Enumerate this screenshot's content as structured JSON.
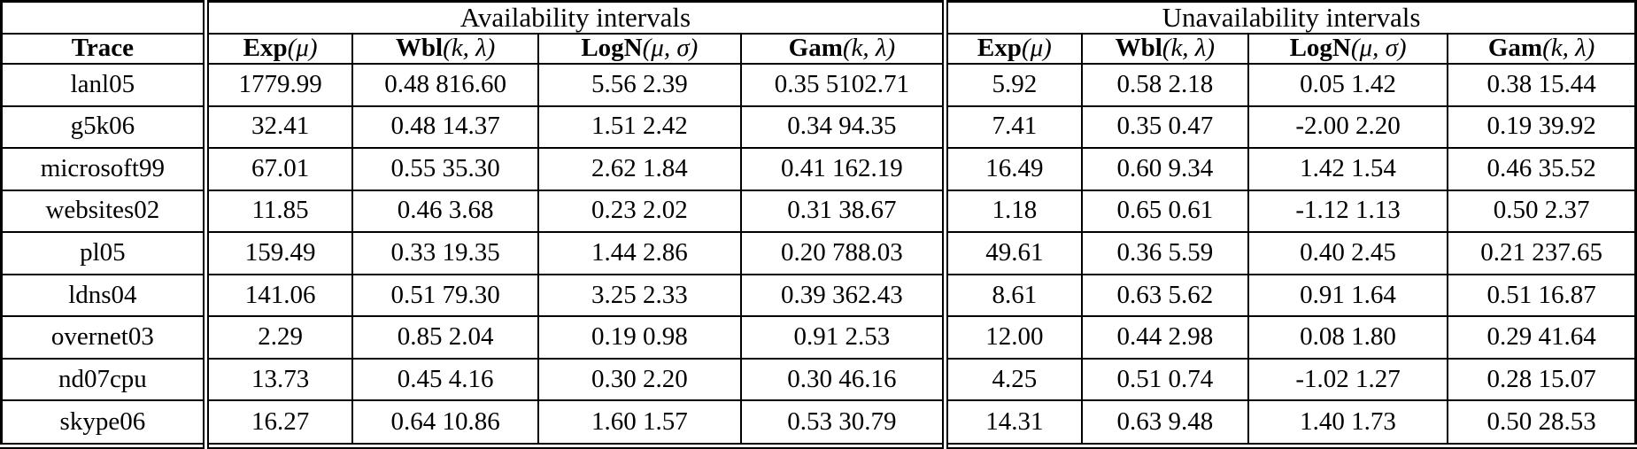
{
  "table": {
    "group_headers": {
      "availability": "Availability intervals",
      "unavailability": "Unavailability intervals"
    },
    "trace_header": "Trace",
    "col_headers": [
      {
        "name": "Exp",
        "args": "(μ)"
      },
      {
        "name": "Wbl",
        "args": "(k, λ)"
      },
      {
        "name": "LogN",
        "args": "(μ, σ)"
      },
      {
        "name": "Gam",
        "args": "(k, λ)"
      },
      {
        "name": "Exp",
        "args": "(μ)"
      },
      {
        "name": "Wbl",
        "args": "(k, λ)"
      },
      {
        "name": "LogN",
        "args": "(μ, σ)"
      },
      {
        "name": "Gam",
        "args": "(k, λ)"
      }
    ],
    "rows": [
      {
        "trace": "lanl05",
        "availability": [
          "1779.99",
          "0.48 816.60",
          "5.56 2.39",
          "0.35 5102.71"
        ],
        "unavailability": [
          "5.92",
          "0.58 2.18",
          "0.05 1.42",
          "0.38 15.44"
        ]
      },
      {
        "trace": "g5k06",
        "availability": [
          "32.41",
          "0.48 14.37",
          "1.51 2.42",
          "0.34 94.35"
        ],
        "unavailability": [
          "7.41",
          "0.35 0.47",
          "-2.00 2.20",
          "0.19 39.92"
        ]
      },
      {
        "trace": "microsoft99",
        "availability": [
          "67.01",
          "0.55 35.30",
          "2.62 1.84",
          "0.41 162.19"
        ],
        "unavailability": [
          "16.49",
          "0.60 9.34",
          "1.42 1.54",
          "0.46 35.52"
        ]
      },
      {
        "trace": "websites02",
        "availability": [
          "11.85",
          "0.46 3.68",
          "0.23 2.02",
          "0.31 38.67"
        ],
        "unavailability": [
          "1.18",
          "0.65 0.61",
          "-1.12 1.13",
          "0.50 2.37"
        ]
      },
      {
        "trace": "pl05",
        "availability": [
          "159.49",
          "0.33 19.35",
          "1.44 2.86",
          "0.20 788.03"
        ],
        "unavailability": [
          "49.61",
          "0.36 5.59",
          "0.40 2.45",
          "0.21 237.65"
        ]
      },
      {
        "trace": "ldns04",
        "availability": [
          "141.06",
          "0.51 79.30",
          "3.25 2.33",
          "0.39 362.43"
        ],
        "unavailability": [
          "8.61",
          "0.63 5.62",
          "0.91 1.64",
          "0.51 16.87"
        ]
      },
      {
        "trace": "overnet03",
        "availability": [
          "2.29",
          "0.85 2.04",
          "0.19 0.98",
          "0.91 2.53"
        ],
        "unavailability": [
          "12.00",
          "0.44 2.98",
          "0.08 1.80",
          "0.29 41.64"
        ]
      },
      {
        "trace": "nd07cpu",
        "availability": [
          "13.73",
          "0.45 4.16",
          "0.30 2.20",
          "0.30 46.16"
        ],
        "unavailability": [
          "4.25",
          "0.51 0.74",
          "-1.02 1.27",
          "0.28 15.07"
        ]
      },
      {
        "trace": "skype06",
        "availability": [
          "16.27",
          "0.64 10.86",
          "1.60 1.57",
          "0.53 30.79"
        ],
        "unavailability": [
          "14.31",
          "0.63 9.48",
          "1.40 1.73",
          "0.50 28.53"
        ]
      }
    ]
  }
}
